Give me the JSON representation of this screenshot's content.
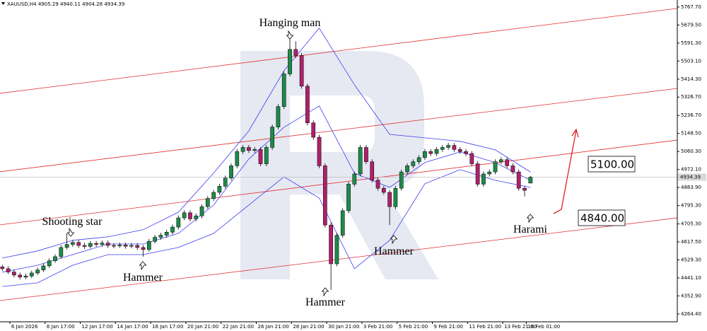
{
  "chart_data": {
    "type": "candlestick",
    "title": "XAUUSD,H4  4905.29 4940.11 4904.28 4934.39",
    "categories": [
      null,
      null,
      "6 Jan 2026",
      null,
      null,
      null,
      null,
      null,
      "8 Jan 17:00",
      null,
      null,
      null,
      null,
      null,
      "12 Jan 17:00",
      null,
      null,
      null,
      null,
      null,
      "14 Jan 17:00",
      null,
      null,
      null,
      null,
      null,
      "16 Jan 17:00",
      null,
      null,
      null,
      null,
      null,
      "20 Jan 21:00",
      null,
      null,
      null,
      null,
      null,
      "22 Jan 21:00",
      null,
      null,
      null,
      null,
      null,
      "26 Jan 21:00",
      null,
      null,
      null,
      null,
      null,
      "28 Jan 21:00",
      null,
      null,
      null,
      null,
      null,
      "30 Jan 21:00",
      null,
      null,
      null,
      null,
      null,
      "3 Feb 21:00",
      null,
      null,
      null,
      null,
      null,
      "5 Feb 21:00",
      null,
      null,
      null,
      null,
      null,
      "9 Feb 21:00",
      null,
      null,
      null,
      null,
      null,
      "11 Feb 21:00",
      null,
      null,
      null,
      null,
      null,
      "13 Feb 21:00",
      null,
      null,
      null,
      "18 Feb 01:00"
    ],
    "ohlc": {
      "open": [
        4495,
        4486,
        4470,
        4455,
        4445,
        4450,
        4465,
        4480,
        4500,
        4525,
        4545,
        4590,
        4605,
        4615,
        4600,
        4595,
        4610,
        4605,
        4612,
        4600,
        4598,
        4602,
        4596,
        4600,
        4590,
        4580,
        4620,
        4640,
        4650,
        4665,
        4690,
        4735,
        4760,
        4730,
        4745,
        4790,
        4830,
        4860,
        4890,
        4930,
        4990,
        5060,
        5080,
        5065,
        5070,
        5000,
        5080,
        5180,
        5280,
        5440,
        5560,
        5530,
        5380,
        5200,
        5130,
        4990,
        4700,
        4510,
        4650,
        4770,
        4900,
        4950,
        5080,
        5010,
        4920,
        4880,
        4860,
        4790,
        4880,
        4960,
        4990,
        5010,
        5030,
        5060,
        5050,
        5070,
        5080,
        5090,
        5070,
        5060,
        5050,
        5000,
        4900,
        4950,
        4960,
        5010,
        5020,
        4990,
        4960,
        4880,
        4905.29
      ],
      "high": [
        4505,
        4498,
        4482,
        4467,
        4462,
        4477,
        4492,
        4512,
        4537,
        4557,
        4602,
        4660,
        4627,
        4627,
        4612,
        4622,
        4622,
        4624,
        4624,
        4612,
        4614,
        4614,
        4612,
        4612,
        4602,
        4632,
        4652,
        4662,
        4677,
        4702,
        4747,
        4772,
        4772,
        4757,
        4802,
        4842,
        4872,
        4902,
        4942,
        5002,
        5072,
        5092,
        5092,
        5082,
        5082,
        5092,
        5192,
        5292,
        5452,
        5620,
        5600,
        5542,
        5392,
        5212,
        5142,
        5002,
        4712,
        4662,
        4782,
        4912,
        4962,
        5092,
        5092,
        5022,
        4932,
        4892,
        4872,
        4892,
        4972,
        5002,
        5022,
        5042,
        5072,
        5072,
        5082,
        5092,
        5102,
        5102,
        5082,
        5072,
        5062,
        5012,
        4962,
        4972,
        5022,
        5032,
        5032,
        5002,
        4972,
        4892,
        4940.11
      ],
      "low": [
        4475,
        4460,
        4443,
        4433,
        4435,
        4440,
        4455,
        4470,
        4490,
        4515,
        4535,
        4580,
        4593,
        4588,
        4583,
        4585,
        4593,
        4595,
        4588,
        4586,
        4588,
        4584,
        4586,
        4578,
        4545,
        4570,
        4610,
        4628,
        4638,
        4653,
        4678,
        4723,
        4718,
        4718,
        4733,
        4778,
        4818,
        4848,
        4878,
        4918,
        4978,
        5048,
        5053,
        5053,
        4988,
        4988,
        5068,
        5168,
        5268,
        5428,
        5518,
        5368,
        5188,
        5118,
        4978,
        4688,
        4382,
        4498,
        4638,
        4758,
        4888,
        4938,
        4998,
        4908,
        4868,
        4848,
        4700,
        4778,
        4868,
        4948,
        4978,
        4998,
        5018,
        5038,
        5038,
        5058,
        5068,
        5058,
        5048,
        5038,
        4988,
        4888,
        4888,
        4938,
        4948,
        4998,
        4978,
        4948,
        4868,
        4840,
        4904.28
      ],
      "close": [
        4486,
        4470,
        4455,
        4445,
        4450,
        4465,
        4480,
        4500,
        4525,
        4545,
        4590,
        4605,
        4615,
        4600,
        4595,
        4610,
        4605,
        4612,
        4600,
        4598,
        4602,
        4596,
        4600,
        4590,
        4580,
        4620,
        4640,
        4650,
        4665,
        4690,
        4735,
        4760,
        4730,
        4745,
        4790,
        4830,
        4860,
        4890,
        4930,
        4990,
        5060,
        5080,
        5065,
        5070,
        5000,
        5080,
        5180,
        5280,
        5440,
        5560,
        5530,
        5380,
        5200,
        5130,
        4990,
        4700,
        4510,
        4650,
        4770,
        4900,
        4950,
        5080,
        5010,
        4920,
        4880,
        4860,
        4790,
        4880,
        4960,
        4990,
        5010,
        5030,
        5060,
        5050,
        5070,
        5080,
        5090,
        5070,
        5060,
        5050,
        5000,
        4900,
        4950,
        4960,
        5010,
        5020,
        4990,
        4960,
        4880,
        4870,
        4934.39
      ],
      "up_color": "#1e8a4a",
      "down_color": "#b0206a"
    },
    "bollinger": {
      "color": "#3c3cf0",
      "x": [
        0,
        6,
        12,
        18,
        24,
        30,
        36,
        42,
        48,
        54,
        60,
        66,
        72,
        78,
        84,
        90
      ],
      "upper": [
        4538,
        4573,
        4625,
        4642,
        4677,
        4763,
        4954,
        5161,
        5456,
        5664,
        5387,
        5144,
        5127,
        5110,
        5068,
        4960
      ],
      "middle": [
        4469,
        4503,
        4555,
        4607,
        4607,
        4659,
        4798,
        5023,
        5179,
        5283,
        4954,
        4884,
        5006,
        5058,
        5006,
        4919
      ],
      "lower": [
        4399,
        4417,
        4503,
        4555,
        4555,
        4590,
        4659,
        4798,
        4936,
        4832,
        4486,
        4625,
        4902,
        4971,
        4919,
        4884
      ]
    },
    "channel_lines": {
      "color": "#e03030",
      "left": [
        5345,
        4961,
        4701,
        4330
      ],
      "right": [
        5761,
        5369,
        5116,
        4735
      ]
    },
    "ylim": [
      4226,
      5802
    ],
    "yticks": [
      {
        "value": 4264.4,
        "label": "4264.40"
      },
      {
        "value": 4352.9,
        "label": "4352.90"
      },
      {
        "value": 4441.1,
        "label": "4441.10"
      },
      {
        "value": 4529.3,
        "label": "4529.30"
      },
      {
        "value": 4617.5,
        "label": "4617.50"
      },
      {
        "value": 4705.3,
        "label": "4705.30"
      },
      {
        "value": 4795.3,
        "label": "4795.30"
      },
      {
        "value": 4883.9,
        "label": "4883.90"
      },
      {
        "value": 4972.1,
        "label": "4972.10"
      },
      {
        "value": 5060.3,
        "label": "5060.30"
      },
      {
        "value": 5148.5,
        "label": "5148.50"
      },
      {
        "value": 5236.7,
        "label": "5236.70"
      },
      {
        "value": 5326.7,
        "label": "5326.70"
      },
      {
        "value": 5414.3,
        "label": "5414.30"
      },
      {
        "value": 5503.1,
        "label": "5503.10"
      },
      {
        "value": 5591.3,
        "label": "5591.30"
      },
      {
        "value": 5679.5,
        "label": "5679.50"
      },
      {
        "value": 5767.7,
        "label": "5767.70"
      }
    ],
    "annotations": [
      "Hanging man",
      "Shooting star",
      "Hammer",
      "Hammer",
      "Hammer",
      "Harami",
      "5100.00",
      "4840.00"
    ]
  }
}
